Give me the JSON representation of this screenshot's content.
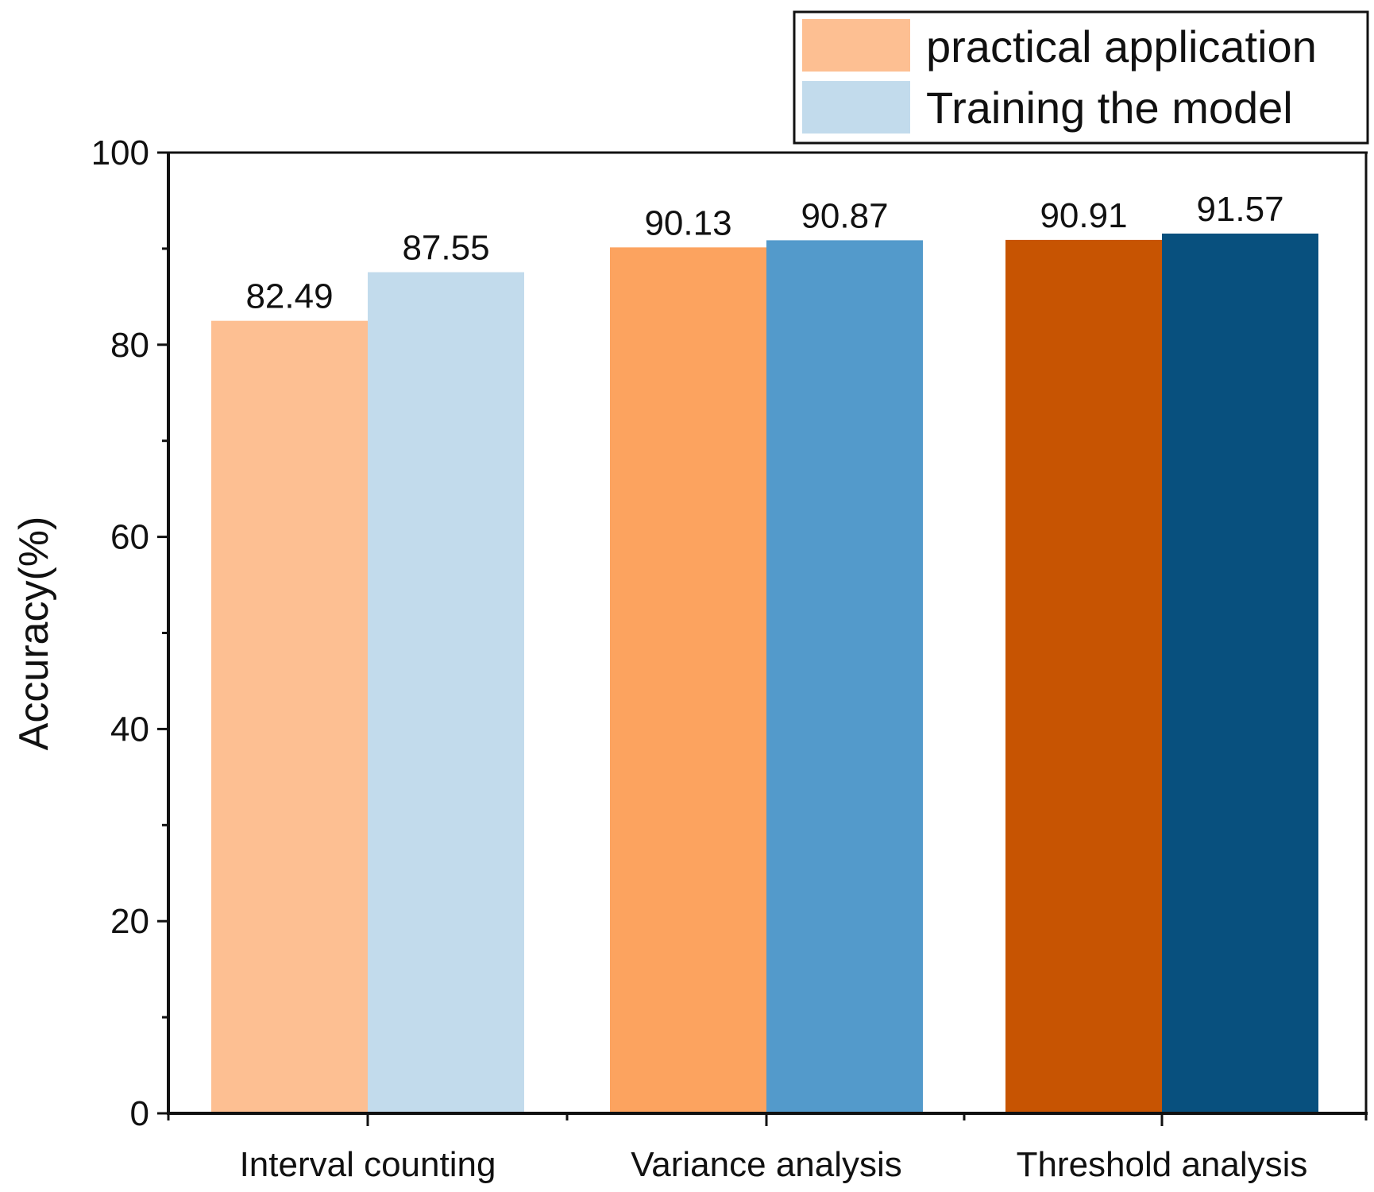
{
  "chart_data": {
    "type": "bar",
    "title": "",
    "xlabel": "",
    "ylabel": "Accuracy(%)",
    "ylim": [
      0,
      100
    ],
    "yticks": [
      0,
      20,
      40,
      60,
      80,
      100
    ],
    "grid": false,
    "legend_position": "top-right",
    "categories": [
      "Interval counting",
      "Variance analysis",
      "Threshold analysis"
    ],
    "series": [
      {
        "name": "practical application",
        "values": [
          82.49,
          90.13,
          90.91
        ],
        "labels": [
          "82.49",
          "90.13",
          "90.91"
        ],
        "colors": [
          "#FDBF92",
          "#FCA35F",
          "#C75402"
        ],
        "legend_color": "#FDBF92"
      },
      {
        "name": "Training the model",
        "values": [
          87.55,
          90.87,
          91.57
        ],
        "labels": [
          "87.55",
          "90.87",
          "91.57"
        ],
        "colors": [
          "#C2DBEC",
          "#539ACB",
          "#08507E"
        ],
        "legend_color": "#C2DBEC"
      }
    ]
  }
}
